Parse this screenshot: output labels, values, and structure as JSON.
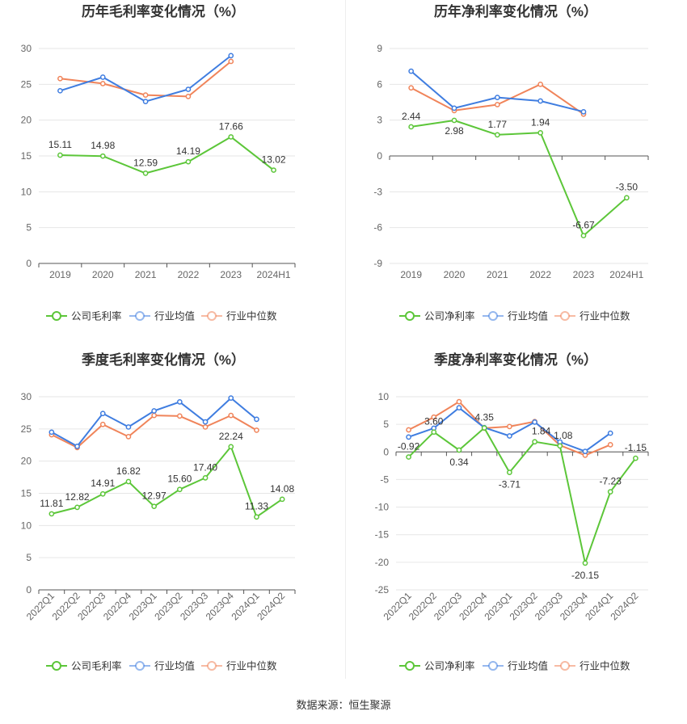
{
  "colors": {
    "company": "#5cc639",
    "industry_avg": "#3f7de0",
    "industry_median": "#f0845a"
  },
  "source": "数据来源：恒生聚源",
  "chart_data": [
    {
      "type": "line",
      "title": "历年毛利率变化情况（%）",
      "categories": [
        "2019",
        "2020",
        "2021",
        "2022",
        "2023",
        "2024H1"
      ],
      "ylim": [
        0,
        30
      ],
      "yticks": [
        "0",
        "5",
        "10",
        "15",
        "20",
        "25",
        "30"
      ],
      "grid": true,
      "legend_position": "bottom",
      "series": [
        {
          "name": "公司毛利率",
          "key": "company",
          "values": [
            15.11,
            14.98,
            12.59,
            14.19,
            17.66,
            13.02
          ],
          "labels": [
            "15.11",
            "14.98",
            "12.59",
            "14.19",
            "17.66",
            "13.02"
          ]
        },
        {
          "name": "行业均值",
          "key": "industry_avg",
          "values": [
            24.1,
            26.0,
            22.6,
            24.3,
            29.0,
            null
          ]
        },
        {
          "name": "行业中位数",
          "key": "industry_median",
          "values": [
            25.8,
            25.1,
            23.5,
            23.3,
            28.2,
            null
          ]
        }
      ]
    },
    {
      "type": "line",
      "title": "历年净利率变化情况（%）",
      "categories": [
        "2019",
        "2020",
        "2021",
        "2022",
        "2023",
        "2024H1"
      ],
      "ylim": [
        -9,
        9
      ],
      "yticks": [
        "-9",
        "-6",
        "-3",
        "0",
        "3",
        "6",
        "9"
      ],
      "grid": true,
      "legend_position": "bottom",
      "series": [
        {
          "name": "公司净利率",
          "key": "company",
          "values": [
            2.44,
            2.98,
            1.77,
            1.94,
            -6.67,
            -3.5
          ],
          "labels": [
            "2.44",
            "2.98",
            "1.77",
            "1.94",
            "-6.67",
            "-3.50"
          ]
        },
        {
          "name": "行业均值",
          "key": "industry_avg",
          "values": [
            7.1,
            4.0,
            4.9,
            4.6,
            3.7,
            null
          ]
        },
        {
          "name": "行业中位数",
          "key": "industry_median",
          "values": [
            5.7,
            3.8,
            4.3,
            6.0,
            3.5,
            null
          ]
        }
      ]
    },
    {
      "type": "line",
      "title": "季度毛利率变化情况（%）",
      "categories": [
        "2022Q1",
        "2022Q2",
        "2022Q3",
        "2022Q4",
        "2023Q1",
        "2023Q2",
        "2023Q3",
        "2023Q4",
        "2024Q1",
        "2024Q2"
      ],
      "ylim": [
        0,
        30
      ],
      "yticks": [
        "0",
        "5",
        "10",
        "15",
        "20",
        "25",
        "30"
      ],
      "grid": true,
      "legend_position": "bottom",
      "series": [
        {
          "name": "公司毛利率",
          "key": "company",
          "values": [
            11.81,
            12.82,
            14.91,
            16.82,
            12.97,
            15.6,
            17.4,
            22.24,
            11.33,
            14.08
          ],
          "labels": [
            "11.81",
            "12.82",
            "14.91",
            "16.82",
            "12.97",
            "15.60",
            "17.40",
            "22.24",
            "11.33",
            "14.08"
          ]
        },
        {
          "name": "行业均值",
          "key": "industry_avg",
          "values": [
            24.5,
            22.3,
            27.4,
            25.3,
            27.8,
            29.2,
            26.1,
            29.8,
            26.5,
            null
          ]
        },
        {
          "name": "行业中位数",
          "key": "industry_median",
          "values": [
            24.1,
            22.1,
            25.7,
            23.8,
            27.1,
            27.0,
            25.3,
            27.1,
            24.8,
            null
          ]
        }
      ]
    },
    {
      "type": "line",
      "title": "季度净利率变化情况（%）",
      "categories": [
        "2022Q1",
        "2022Q2",
        "2022Q3",
        "2022Q4",
        "2023Q1",
        "2023Q2",
        "2023Q3",
        "2023Q4",
        "2024Q1",
        "2024Q2"
      ],
      "ylim": [
        -25,
        10
      ],
      "yticks": [
        "-25",
        "-20",
        "-15",
        "-10",
        "-5",
        "0",
        "5",
        "10"
      ],
      "grid": true,
      "legend_position": "bottom",
      "series": [
        {
          "name": "公司净利率",
          "key": "company",
          "values": [
            -0.92,
            3.6,
            0.34,
            4.35,
            -3.71,
            1.84,
            1.08,
            -20.15,
            -7.23,
            -1.15
          ],
          "labels": [
            "-0.92",
            "3.60",
            "0.34",
            "4.35",
            "-3.71",
            "1.84",
            "1.08",
            "-20.15",
            "-7.23",
            "-1.15"
          ]
        },
        {
          "name": "行业均值",
          "key": "industry_avg",
          "values": [
            2.7,
            4.3,
            8.0,
            4.4,
            2.9,
            5.4,
            1.8,
            0.1,
            3.4,
            null
          ]
        },
        {
          "name": "行业中位数",
          "key": "industry_median",
          "values": [
            4.0,
            6.3,
            9.1,
            4.3,
            4.6,
            5.5,
            1.2,
            -0.6,
            1.3,
            null
          ]
        }
      ]
    }
  ]
}
